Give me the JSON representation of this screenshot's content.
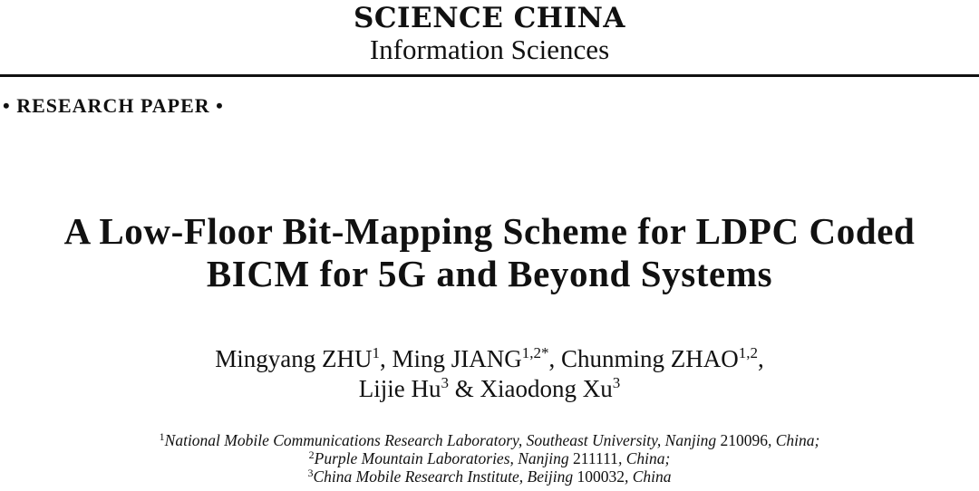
{
  "journal": {
    "name": "SCIENCE CHINA",
    "subtitle": "Information Sciences"
  },
  "paper_type": "• RESEARCH PAPER •",
  "title": {
    "line1": "A Low-Floor Bit-Mapping Scheme for LDPC Coded",
    "line2": "BICM for 5G and Beyond Systems"
  },
  "authors": [
    {
      "name": "Mingyang ZHU",
      "sup": "1",
      "sep": ", "
    },
    {
      "name": "Ming JIANG",
      "sup": "1,2*",
      "sep": ", "
    },
    {
      "name": "Chunming ZHAO",
      "sup": "1,2",
      "sep": ","
    },
    {
      "name": "Lijie Hu",
      "sup": "3",
      "sep": " & "
    },
    {
      "name": "Xiaodong Xu",
      "sup": "3",
      "sep": ""
    }
  ],
  "affiliations": [
    {
      "sup": "1",
      "text": "National Mobile Communications Research Laboratory, Southeast University, Nanjing ",
      "code": "210096",
      "tail": ", China;"
    },
    {
      "sup": "2",
      "text": "Purple Mountain Laboratories, Nanjing ",
      "code": "211111",
      "tail": ", China;"
    },
    {
      "sup": "3",
      "text": "China Mobile Research Institute, Beijing ",
      "code": "100032",
      "tail": ", China"
    }
  ]
}
